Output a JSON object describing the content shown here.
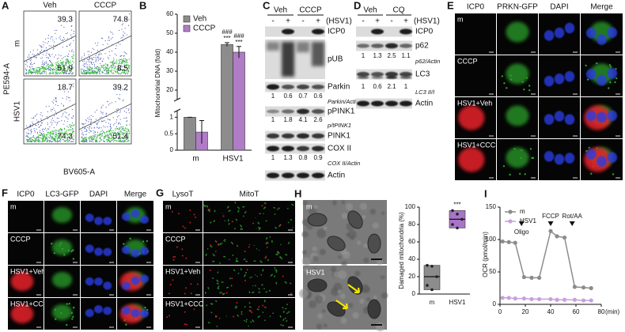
{
  "panels": {
    "A": {
      "label": "A",
      "columns": [
        "Veh",
        "CCCP"
      ],
      "rows": [
        "m",
        "HSV1"
      ],
      "quadrants": [
        [
          [
            "39.3",
            "51.9"
          ],
          [
            "74.8",
            "8.5"
          ]
        ],
        [
          [
            "18.7",
            "74.3"
          ],
          [
            "39.2",
            "51.4"
          ]
        ]
      ],
      "y_label": "PE594-A",
      "x_label": "BV605-A"
    },
    "C": {
      "label": "C",
      "groups": [
        "Veh",
        "CCCP"
      ],
      "treatment": "(HSV1)",
      "signs": [
        "-",
        "+",
        "-",
        "+"
      ],
      "blots": [
        {
          "name": "ICP0"
        },
        {
          "name": "pUB"
        },
        {
          "name": "Parkin"
        },
        {
          "values": [
            "1",
            "0.6",
            "0.7",
            "0.6"
          ],
          "name": "Parkin/Actin"
        },
        {
          "name": "pPINK1"
        },
        {
          "values": [
            "1",
            "1.8",
            "4.1",
            "2.6"
          ],
          "name": "p/tPINK1"
        },
        {
          "name": "PINK1"
        },
        {
          "name": "COX II"
        },
        {
          "values": [
            "1",
            "1.3",
            "0.8",
            "0.9"
          ],
          "name": "COX II/Actin"
        },
        {
          "name": "Actin"
        }
      ]
    },
    "D": {
      "label": "D",
      "groups": [
        "Veh",
        "CQ"
      ],
      "treatment": "(HSV1)",
      "signs": [
        "-",
        "+",
        "-",
        "+"
      ],
      "blots": [
        {
          "name": "ICP0"
        },
        {
          "name": "p62"
        },
        {
          "values": [
            "1",
            "1.3",
            "2.5",
            "1.1"
          ],
          "name": "p62/Actin"
        },
        {
          "name": "LC3"
        },
        {
          "values": [
            "1",
            "0.6",
            "2.1",
            "1"
          ],
          "name": "LC3 II/I"
        },
        {
          "name": "Actin"
        }
      ]
    },
    "E": {
      "label": "E",
      "channels": [
        "ICP0",
        "PRKN-GFP",
        "DAPI",
        "Merge"
      ],
      "channel_colors": [
        "#e8202a",
        "#2aa02a",
        "#2a3ee0",
        "#111111"
      ],
      "rows": [
        "m",
        "CCCP",
        "HSV1+Veh",
        "HSV1+CCCP"
      ]
    },
    "F": {
      "label": "F",
      "channels": [
        "ICP0",
        "LC3-GFP",
        "DAPI",
        "Merge"
      ],
      "channel_colors": [
        "#e8202a",
        "#2aa02a",
        "#2a3ee0",
        "#111111"
      ],
      "rows": [
        "m",
        "CCCP",
        "HSV1+Veh",
        "HSV1+CCCP"
      ]
    },
    "G": {
      "label": "G",
      "channels": [
        "LysoT",
        "MitoT"
      ],
      "channel_colors": [
        "#e8202a",
        "#2aa02a"
      ],
      "rows": [
        "m",
        "CCCP",
        "HSV1+Veh",
        "HSV1+CCCP"
      ]
    },
    "H": {
      "label": "H",
      "rows": [
        "m",
        "HSV1"
      ]
    }
  },
  "chart_data": [
    {
      "type": "bar",
      "label": "B",
      "y_label": "Mitochondrial DNA (fold)",
      "categories": [
        "m",
        "HSV1"
      ],
      "series": [
        {
          "name": "Veh",
          "color": "#8c8c8c",
          "values": [
            1,
            44
          ],
          "errors": [
            0,
            1
          ]
        },
        {
          "name": "CCCP",
          "color": "#b07cc6",
          "values": [
            0.55,
            40
          ],
          "errors": [
            0.35,
            3
          ]
        }
      ],
      "ylim": [
        0,
        60
      ],
      "ybreak": [
        1.2,
        15
      ],
      "yticks": [
        0,
        0.5,
        1,
        20,
        30,
        40,
        50,
        60
      ],
      "annotations": [
        {
          "category": "HSV1",
          "series": "Veh",
          "labels": [
            "###",
            "***"
          ]
        },
        {
          "category": "HSV1",
          "series": "CCCP",
          "labels": [
            "###",
            "***"
          ]
        }
      ],
      "legend": "upper left"
    },
    {
      "type": "floating_bar",
      "y_label": "Damaged mitochondria (%)",
      "categories": [
        "m",
        "HSV1"
      ],
      "colors": [
        "#8c8c8c",
        "#a874c8"
      ],
      "values": [
        20,
        86
      ],
      "points": [
        [
          33,
          32,
          20,
          10,
          5
        ],
        [
          96,
          92,
          86,
          80,
          76
        ]
      ],
      "ylim": [
        0,
        100
      ],
      "yticks": [
        0,
        20,
        40,
        60,
        80,
        100
      ],
      "annotations": [
        {
          "category": "HSV1",
          "labels": [
            "***"
          ]
        }
      ]
    },
    {
      "type": "line",
      "label": "I",
      "y_label": "OCR (pmol/min)",
      "x_label": "(min)",
      "x": [
        2,
        7,
        12,
        19,
        25,
        31,
        40,
        45,
        51,
        59,
        66,
        72
      ],
      "series": [
        {
          "name": "m",
          "color": "#8c8c8c",
          "values": [
            97,
            96,
            95,
            42,
            41,
            41,
            113,
            105,
            103,
            27,
            26,
            25
          ]
        },
        {
          "name": "HSV1",
          "color": "#c9a0dc",
          "values": [
            10,
            10,
            9,
            9,
            8,
            8,
            8,
            7,
            7,
            7,
            6,
            6
          ]
        }
      ],
      "xlim": [
        0,
        80
      ],
      "ylim": [
        0,
        150
      ],
      "xticks": [
        0,
        20,
        40,
        60,
        80
      ],
      "yticks": [
        0,
        50,
        100,
        150
      ],
      "injections": [
        {
          "x": 17,
          "label": "Oligo"
        },
        {
          "x": 40,
          "label": "FCCP"
        },
        {
          "x": 57,
          "label": "Rot/AA"
        }
      ],
      "legend": "upper left"
    }
  ]
}
